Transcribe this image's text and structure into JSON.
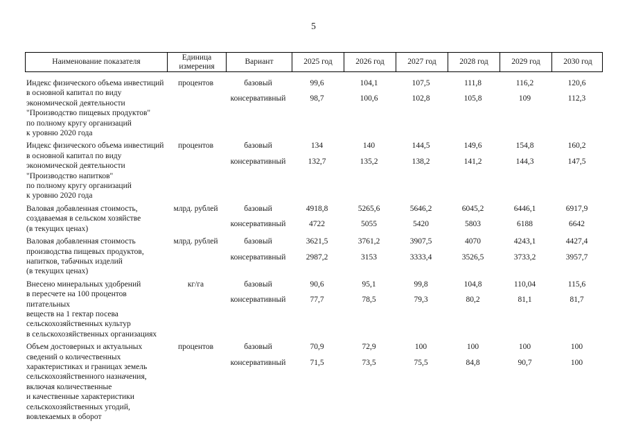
{
  "page": {
    "number": "5"
  },
  "table": {
    "headers": [
      "Наименование показателя",
      "Единица измерения",
      "Вариант",
      "2025 год",
      "2026 год",
      "2027 год",
      "2028 год",
      "2029 год",
      "2030 год"
    ],
    "rows": [
      {
        "name": "Индекс физического объема инвестиций\nв основной капитал по виду\nэкономической деятельности\n\"Производство пищевых продуктов\"\nпо полному кругу организаций\nк уровню 2020 года",
        "unit": "процентов",
        "variants": [
          "базовый",
          "консервативный"
        ],
        "values": [
          [
            "99,6",
            "104,1",
            "107,5",
            "111,8",
            "116,2",
            "120,6"
          ],
          [
            "98,7",
            "100,6",
            "102,8",
            "105,8",
            "109",
            "112,3"
          ]
        ]
      },
      {
        "name": "Индекс физического объема инвестиций\nв основной капитал по виду\nэкономической деятельности\n\"Производство напитков\"\nпо полному кругу организаций\nк уровню 2020 года",
        "unit": "процентов",
        "variants": [
          "базовый",
          "консервативный"
        ],
        "values": [
          [
            "134",
            "140",
            "144,5",
            "149,6",
            "154,8",
            "160,2"
          ],
          [
            "132,7",
            "135,2",
            "138,2",
            "141,2",
            "144,3",
            "147,5"
          ]
        ]
      },
      {
        "name": "Валовая добавленная стоимость,\nсоздаваемая в сельском хозяйстве\n(в текущих ценах)",
        "unit": "млрд. рублей",
        "variants": [
          "базовый",
          "консервативный"
        ],
        "values": [
          [
            "4918,8",
            "5265,6",
            "5646,2",
            "6045,2",
            "6446,1",
            "6917,9"
          ],
          [
            "4722",
            "5055",
            "5420",
            "5803",
            "6188",
            "6642"
          ]
        ]
      },
      {
        "name": "Валовая добавленная стоимость\nпроизводства пищевых продуктов,\nнапитков, табачных изделий\n(в текущих ценах)",
        "unit": "млрд. рублей",
        "variants": [
          "базовый",
          "консервативный"
        ],
        "values": [
          [
            "3621,5",
            "3761,2",
            "3907,5",
            "4070",
            "4243,1",
            "4427,4"
          ],
          [
            "2987,2",
            "3153",
            "3333,4",
            "3526,5",
            "3733,2",
            "3957,7"
          ]
        ]
      },
      {
        "name": "Внесено минеральных удобрений\nв пересчете на 100 процентов питательных\nвеществ на 1 гектар посева\nсельскохозяйственных культур\nв сельскохозяйственных организациях",
        "unit": "кг/га",
        "variants": [
          "базовый",
          "консервативный"
        ],
        "values": [
          [
            "90,6",
            "95,1",
            "99,8",
            "104,8",
            "110,04",
            "115,6"
          ],
          [
            "77,7",
            "78,5",
            "79,3",
            "80,2",
            "81,1",
            "81,7"
          ]
        ]
      },
      {
        "name": "Объем достоверных и актуальных\nсведений о количественных\nхарактеристиках и границах земель\nсельскохозяйственного назначения,\nвключая количественные\nи качественные характеристики\nсельскохозяйственных угодий,\nвовлекаемых в оборот",
        "unit": "процентов",
        "variants": [
          "базовый",
          "консервативный"
        ],
        "values": [
          [
            "70,9",
            "72,9",
            "100",
            "100",
            "100",
            "100"
          ],
          [
            "71,5",
            "73,5",
            "75,5",
            "84,8",
            "90,7",
            "100"
          ]
        ]
      }
    ]
  }
}
